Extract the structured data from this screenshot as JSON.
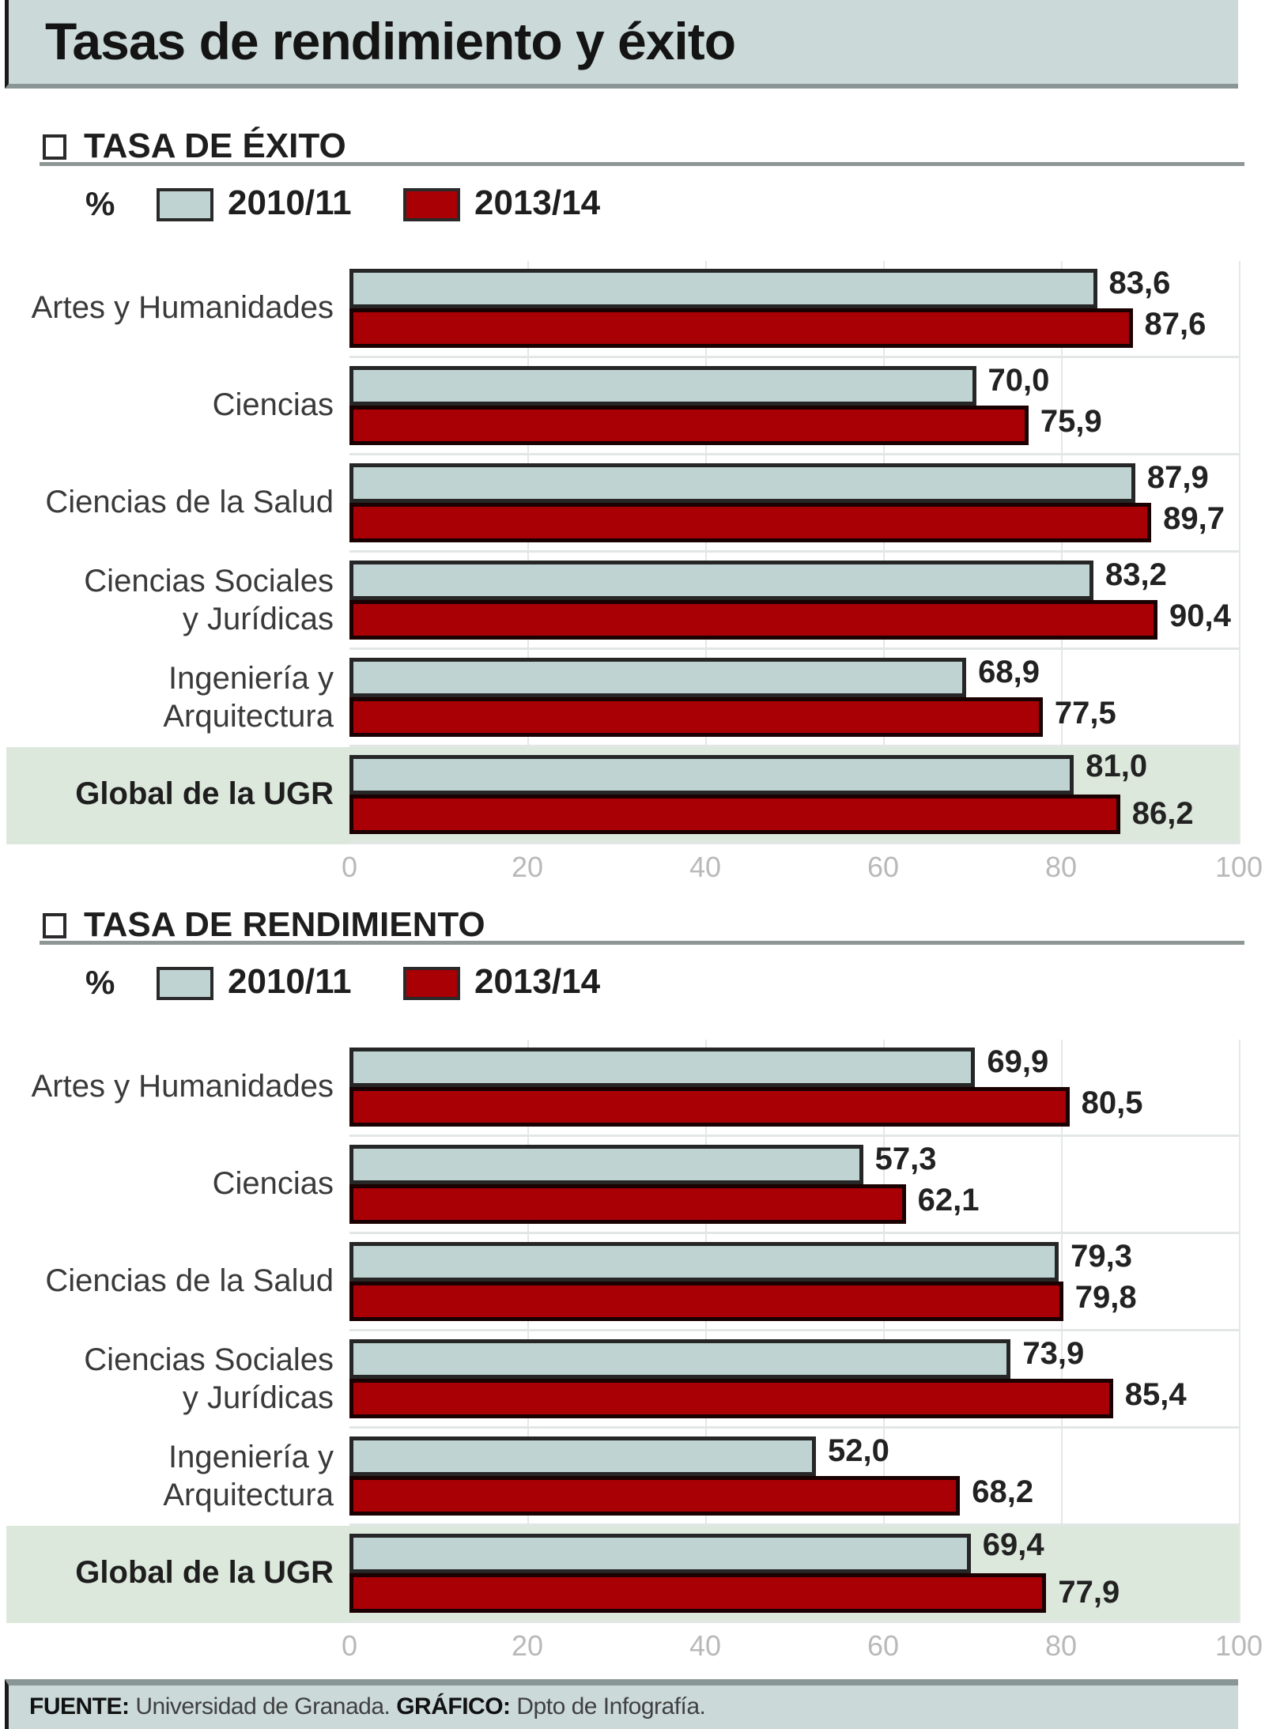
{
  "title": "Tasas de rendimiento y éxito",
  "colors": {
    "series_2010": "#bfd3d2",
    "series_2013": "#a90005",
    "highlight_row": "#dde8dd",
    "title_bg": "#cbdad9"
  },
  "sections": [
    {
      "heading": "TASA DE ÉXITO",
      "legend": {
        "unit": "%",
        "series_a": "2010/11",
        "series_b": "2013/14"
      },
      "rows": [
        {
          "label": "Artes y Humanidades",
          "a": "83,6",
          "b": "87,6"
        },
        {
          "label": "Ciencias",
          "a": "70,0",
          "b": "75,9"
        },
        {
          "label": "Ciencias de la Salud",
          "a": "87,9",
          "b": "89,7"
        },
        {
          "label": "Ciencias Sociales\ny Jurídicas",
          "a": "83,2",
          "b": "90,4"
        },
        {
          "label": "Ingeniería y\nArquitectura",
          "a": "68,9",
          "b": "77,5"
        },
        {
          "label": "Global de la UGR",
          "a": "81,0",
          "b": "86,2"
        }
      ],
      "ticks": [
        "0",
        "20",
        "40",
        "60",
        "80",
        "100"
      ]
    },
    {
      "heading": "TASA DE RENDIMIENTO",
      "legend": {
        "unit": "%",
        "series_a": "2010/11",
        "series_b": "2013/14"
      },
      "rows": [
        {
          "label": "Artes y Humanidades",
          "a": "69,9",
          "b": "80,5"
        },
        {
          "label": "Ciencias",
          "a": "57,3",
          "b": "62,1"
        },
        {
          "label": "Ciencias de la Salud",
          "a": "79,3",
          "b": "79,8"
        },
        {
          "label": "Ciencias Sociales\ny Jurídicas",
          "a": "73,9",
          "b": "85,4"
        },
        {
          "label": "Ingeniería y\nArquitectura",
          "a": "52,0",
          "b": "68,2"
        },
        {
          "label": "Global de la UGR",
          "a": "69,4",
          "b": "77,9"
        }
      ],
      "ticks": [
        "0",
        "20",
        "40",
        "60",
        "80",
        "100"
      ]
    }
  ],
  "footer": {
    "source_label": "FUENTE:",
    "source": "Universidad de Granada.",
    "graphic_label": "GRÁFICO:",
    "graphic": "Dpto de Infografía."
  },
  "chart_data": [
    {
      "type": "bar",
      "orientation": "horizontal",
      "title": "TASA DE ÉXITO",
      "xlabel": "%",
      "ylabel": "",
      "xlim": [
        0,
        100
      ],
      "categories": [
        "Artes y Humanidades",
        "Ciencias",
        "Ciencias de la Salud",
        "Ciencias Sociales y Jurídicas",
        "Ingeniería y Arquitectura",
        "Global de la UGR"
      ],
      "series": [
        {
          "name": "2010/11",
          "values": [
            83.6,
            70.0,
            87.9,
            83.2,
            68.9,
            81.0
          ]
        },
        {
          "name": "2013/14",
          "values": [
            87.6,
            75.9,
            89.7,
            90.4,
            77.5,
            86.2
          ]
        }
      ],
      "ticks": [
        0,
        20,
        40,
        60,
        80,
        100
      ],
      "legend_position": "top-left",
      "grid": true
    },
    {
      "type": "bar",
      "orientation": "horizontal",
      "title": "TASA DE RENDIMIENTO",
      "xlabel": "%",
      "ylabel": "",
      "xlim": [
        0,
        100
      ],
      "categories": [
        "Artes y Humanidades",
        "Ciencias",
        "Ciencias de la Salud",
        "Ciencias Sociales y Jurídicas",
        "Ingeniería y Arquitectura",
        "Global de la UGR"
      ],
      "series": [
        {
          "name": "2010/11",
          "values": [
            69.9,
            57.3,
            79.3,
            73.9,
            52.0,
            69.4
          ]
        },
        {
          "name": "2013/14",
          "values": [
            80.5,
            62.1,
            79.8,
            85.4,
            68.2,
            77.9
          ]
        }
      ],
      "ticks": [
        0,
        20,
        40,
        60,
        80,
        100
      ],
      "legend_position": "top-left",
      "grid": true
    }
  ]
}
